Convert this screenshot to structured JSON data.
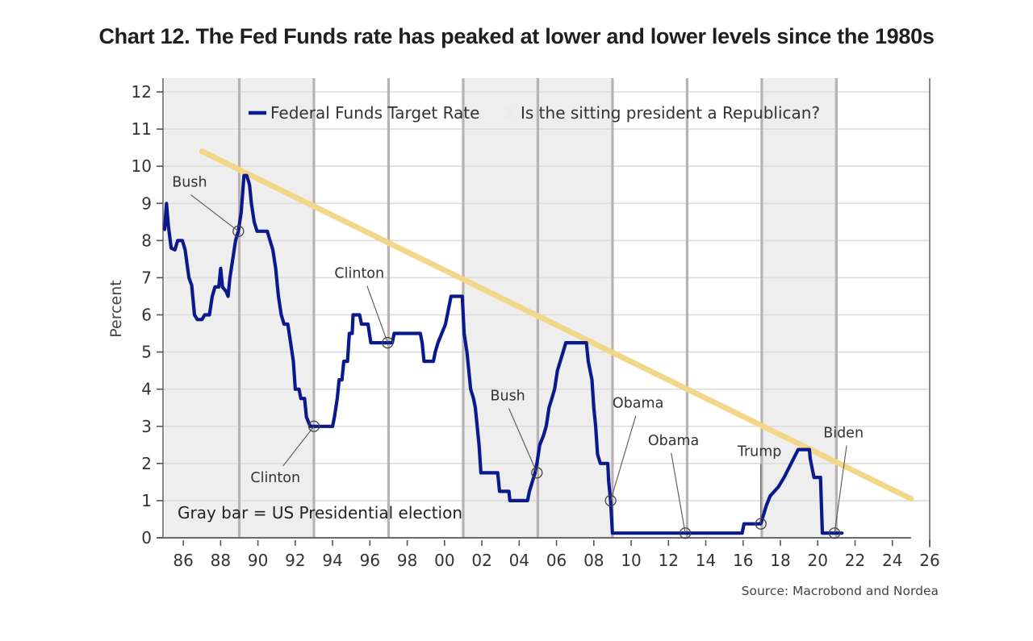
{
  "title": "Chart 12. The Fed Funds rate has peaked at lower and lower levels since the 1980s",
  "source": "Source: Macrobond and Nordea",
  "chart_data": {
    "type": "line",
    "title": "Chart 12. The Fed Funds rate has peaked at lower and lower levels since the 1980s",
    "xlabel": "",
    "ylabel": "Percent",
    "xlim": [
      1985,
      2026
    ],
    "ylim": [
      0,
      12
    ],
    "grid": true,
    "x_ticks": [
      1986,
      1988,
      1990,
      1992,
      1994,
      1996,
      1998,
      2000,
      2002,
      2004,
      2006,
      2008,
      2010,
      2012,
      2014,
      2016,
      2018,
      2020,
      2022,
      2024,
      2026
    ],
    "x_tick_labels": [
      "86",
      "88",
      "90",
      "92",
      "94",
      "96",
      "98",
      "00",
      "02",
      "04",
      "06",
      "08",
      "10",
      "12",
      "14",
      "16",
      "18",
      "20",
      "22",
      "24",
      "26"
    ],
    "y_ticks": [
      0,
      1,
      2,
      3,
      4,
      5,
      6,
      7,
      8,
      9,
      10,
      11,
      12
    ],
    "y_tick_labels": [
      "0",
      "1",
      "2",
      "3",
      "4",
      "5",
      "6",
      "7",
      "8",
      "9",
      "10",
      "11",
      "12"
    ],
    "legend": {
      "placement": "top-center",
      "entries": [
        {
          "label": "Federal Funds Target Rate",
          "color": "#0a1a8c",
          "kind": "line"
        },
        {
          "label": "Is the sitting president a Republican?",
          "color": "#eeeeee",
          "kind": "bar"
        }
      ]
    },
    "series": [
      {
        "name": "Federal Funds Target Rate",
        "color": "#0a1a8c",
        "step": true,
        "points": [
          [
            1985.0,
            8.3
          ],
          [
            1985.1,
            9.0
          ],
          [
            1985.2,
            8.4
          ],
          [
            1985.35,
            7.8
          ],
          [
            1985.55,
            7.75
          ],
          [
            1985.7,
            8.0
          ],
          [
            1985.95,
            8.0
          ],
          [
            1986.1,
            7.75
          ],
          [
            1986.3,
            7.0
          ],
          [
            1986.45,
            6.8
          ],
          [
            1986.6,
            6.0
          ],
          [
            1986.75,
            5.875
          ],
          [
            1987.0,
            5.875
          ],
          [
            1987.15,
            6.0
          ],
          [
            1987.4,
            6.0
          ],
          [
            1987.55,
            6.5
          ],
          [
            1987.7,
            6.75
          ],
          [
            1987.9,
            6.75
          ],
          [
            1988.0,
            7.25
          ],
          [
            1988.1,
            6.75
          ],
          [
            1988.3,
            6.625
          ],
          [
            1988.4,
            6.5
          ],
          [
            1988.5,
            7.0
          ],
          [
            1988.65,
            7.5
          ],
          [
            1988.8,
            8.0
          ],
          [
            1988.95,
            8.25
          ],
          [
            1989.1,
            8.75
          ],
          [
            1989.25,
            9.75
          ],
          [
            1989.4,
            9.75
          ],
          [
            1989.55,
            9.5
          ],
          [
            1989.65,
            9.0
          ],
          [
            1989.8,
            8.5
          ],
          [
            1989.95,
            8.25
          ],
          [
            1990.5,
            8.25
          ],
          [
            1990.65,
            8.0
          ],
          [
            1990.8,
            7.75
          ],
          [
            1990.95,
            7.25
          ],
          [
            1991.1,
            6.5
          ],
          [
            1991.25,
            6.0
          ],
          [
            1991.4,
            5.75
          ],
          [
            1991.6,
            5.75
          ],
          [
            1991.75,
            5.25
          ],
          [
            1991.9,
            4.75
          ],
          [
            1992.0,
            4.0
          ],
          [
            1992.2,
            4.0
          ],
          [
            1992.3,
            3.75
          ],
          [
            1992.5,
            3.75
          ],
          [
            1992.6,
            3.25
          ],
          [
            1992.8,
            3.0
          ],
          [
            1993.0,
            3.0
          ],
          [
            1994.0,
            3.0
          ],
          [
            1994.1,
            3.25
          ],
          [
            1994.25,
            3.75
          ],
          [
            1994.35,
            4.25
          ],
          [
            1994.5,
            4.25
          ],
          [
            1994.6,
            4.75
          ],
          [
            1994.8,
            4.75
          ],
          [
            1994.9,
            5.5
          ],
          [
            1995.05,
            5.5
          ],
          [
            1995.1,
            6.0
          ],
          [
            1995.45,
            6.0
          ],
          [
            1995.55,
            5.75
          ],
          [
            1995.9,
            5.75
          ],
          [
            1996.05,
            5.25
          ],
          [
            1997.2,
            5.25
          ],
          [
            1997.3,
            5.5
          ],
          [
            1998.7,
            5.5
          ],
          [
            1998.8,
            5.25
          ],
          [
            1998.9,
            4.75
          ],
          [
            1999.4,
            4.75
          ],
          [
            1999.5,
            5.0
          ],
          [
            1999.65,
            5.25
          ],
          [
            1999.85,
            5.5
          ],
          [
            2000.05,
            5.75
          ],
          [
            2000.15,
            6.0
          ],
          [
            2000.35,
            6.5
          ],
          [
            2000.95,
            6.5
          ],
          [
            2001.05,
            5.5
          ],
          [
            2001.2,
            5.0
          ],
          [
            2001.3,
            4.5
          ],
          [
            2001.4,
            4.0
          ],
          [
            2001.55,
            3.75
          ],
          [
            2001.65,
            3.5
          ],
          [
            2001.75,
            3.0
          ],
          [
            2001.85,
            2.5
          ],
          [
            2001.95,
            1.75
          ],
          [
            2002.85,
            1.75
          ],
          [
            2002.95,
            1.25
          ],
          [
            2003.45,
            1.25
          ],
          [
            2003.5,
            1.0
          ],
          [
            2004.45,
            1.0
          ],
          [
            2004.55,
            1.25
          ],
          [
            2004.7,
            1.5
          ],
          [
            2004.85,
            1.75
          ],
          [
            2004.95,
            2.0
          ],
          [
            2005.1,
            2.5
          ],
          [
            2005.3,
            2.75
          ],
          [
            2005.45,
            3.0
          ],
          [
            2005.6,
            3.5
          ],
          [
            2005.75,
            3.75
          ],
          [
            2005.9,
            4.0
          ],
          [
            2006.05,
            4.5
          ],
          [
            2006.2,
            4.75
          ],
          [
            2006.35,
            5.0
          ],
          [
            2006.5,
            5.25
          ],
          [
            2007.6,
            5.25
          ],
          [
            2007.7,
            4.75
          ],
          [
            2007.8,
            4.5
          ],
          [
            2007.9,
            4.25
          ],
          [
            2008.0,
            3.5
          ],
          [
            2008.1,
            3.0
          ],
          [
            2008.2,
            2.25
          ],
          [
            2008.35,
            2.0
          ],
          [
            2008.75,
            2.0
          ],
          [
            2008.8,
            1.5
          ],
          [
            2008.9,
            1.0
          ],
          [
            2009.0,
            0.125
          ],
          [
            2015.95,
            0.125
          ],
          [
            2016.05,
            0.375
          ],
          [
            2016.95,
            0.375
          ],
          [
            2017.1,
            0.625
          ],
          [
            2017.25,
            0.875
          ],
          [
            2017.45,
            1.125
          ],
          [
            2017.9,
            1.375
          ],
          [
            2018.2,
            1.625
          ],
          [
            2018.45,
            1.875
          ],
          [
            2018.7,
            2.125
          ],
          [
            2018.95,
            2.375
          ],
          [
            2019.55,
            2.375
          ],
          [
            2019.6,
            2.125
          ],
          [
            2019.7,
            1.875
          ],
          [
            2019.8,
            1.625
          ],
          [
            2020.15,
            1.625
          ],
          [
            2020.25,
            0.125
          ],
          [
            2021.3,
            0.125
          ]
        ]
      },
      {
        "name": "Peak trend line",
        "color": "#f2d78b",
        "step": false,
        "points": [
          [
            1987.0,
            10.4
          ],
          [
            2025.0,
            1.05
          ]
        ]
      }
    ],
    "shaded_regions": {
      "label": "Is the sitting president a Republican?",
      "color": "#eeeeee",
      "ranges": [
        [
          1985.0,
          1993.0
        ],
        [
          2001.0,
          2009.0
        ],
        [
          2017.0,
          2021.0
        ]
      ]
    },
    "election_lines": [
      1989,
      1993,
      1997,
      2001,
      2005,
      2009,
      2013,
      2017,
      2021
    ],
    "annotations": [
      {
        "text": "Bush",
        "point": [
          1988.95,
          8.25
        ],
        "label_at": [
          1985.4,
          9.45
        ]
      },
      {
        "text": "Clinton",
        "point": [
          1993.0,
          3.0
        ],
        "label_at": [
          1989.6,
          1.5
        ]
      },
      {
        "text": "Clinton",
        "point": [
          1996.95,
          5.25
        ],
        "label_at": [
          1994.1,
          7.0
        ]
      },
      {
        "text": "Bush",
        "point": [
          2004.95,
          1.75
        ],
        "label_at": [
          2002.45,
          3.7
        ]
      },
      {
        "text": "Obama",
        "point": [
          2008.9,
          1.0
        ],
        "label_at": [
          2009.0,
          3.5
        ]
      },
      {
        "text": "Obama",
        "point": [
          2012.9,
          0.125
        ],
        "label_at": [
          2010.9,
          2.5
        ]
      },
      {
        "text": "Trump",
        "point": [
          2016.95,
          0.375
        ],
        "label_at": [
          2015.7,
          2.2
        ]
      },
      {
        "text": "Biden",
        "point": [
          2020.9,
          0.125
        ],
        "label_at": [
          2020.3,
          2.7
        ]
      }
    ],
    "notes": [
      "Gray bar = US Presidential election"
    ]
  }
}
